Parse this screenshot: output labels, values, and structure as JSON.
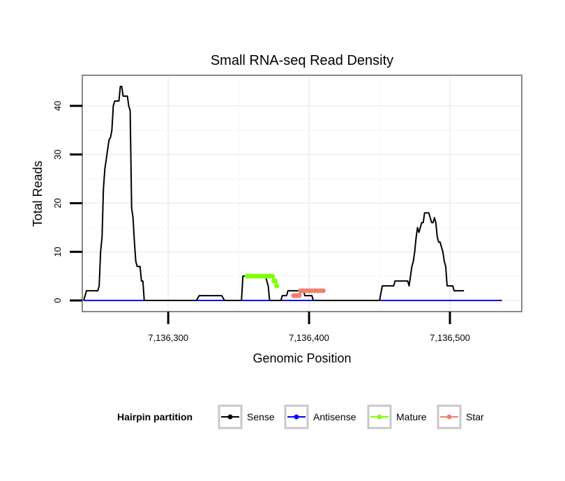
{
  "chart_data": {
    "type": "line",
    "title": "Small RNA-seq Read Density",
    "xlabel": "Genomic Position",
    "ylabel": "Total Reads",
    "xlim": [
      7136240,
      7136550
    ],
    "ylim": [
      -2,
      46
    ],
    "xticks": [
      7136300,
      7136400,
      7136500
    ],
    "xtick_labels": [
      "7,136,300",
      "7,136,400",
      "7,136,500"
    ],
    "yticks": [
      0,
      10,
      20,
      30,
      40
    ],
    "ytick_labels": [
      "0",
      "10",
      "20",
      "30",
      "40"
    ],
    "grid": true,
    "legend": {
      "title": "Hairpin partition",
      "position": "bottom",
      "entries": [
        "Sense",
        "Antisense",
        "Mature",
        "Star"
      ]
    },
    "series": [
      {
        "name": "Sense",
        "color": "#000000",
        "points": [
          [
            7136240,
            0
          ],
          [
            7136242,
            2
          ],
          [
            7136250,
            2
          ],
          [
            7136251,
            3
          ],
          [
            7136252,
            10
          ],
          [
            7136253,
            13
          ],
          [
            7136254,
            23
          ],
          [
            7136255,
            27
          ],
          [
            7136256,
            29
          ],
          [
            7136257,
            31
          ],
          [
            7136258,
            33
          ],
          [
            7136259,
            33.5
          ],
          [
            7136260,
            35
          ],
          [
            7136261,
            40
          ],
          [
            7136262,
            41
          ],
          [
            7136264,
            41
          ],
          [
            7136265,
            41
          ],
          [
            7136266,
            44
          ],
          [
            7136267,
            44
          ],
          [
            7136268,
            42
          ],
          [
            7136269,
            42
          ],
          [
            7136270,
            42
          ],
          [
            7136271,
            42
          ],
          [
            7136272,
            40
          ],
          [
            7136273,
            39
          ],
          [
            7136274,
            19
          ],
          [
            7136275,
            17
          ],
          [
            7136276,
            12
          ],
          [
            7136277,
            8
          ],
          [
            7136278,
            7
          ],
          [
            7136280,
            7
          ],
          [
            7136281,
            4
          ],
          [
            7136282,
            4
          ],
          [
            7136283,
            0
          ],
          [
            7136320,
            0
          ],
          [
            7136322,
            1
          ],
          [
            7136338,
            1
          ],
          [
            7136340,
            0
          ],
          [
            7136352,
            0
          ],
          [
            7136353,
            5
          ],
          [
            7136369,
            5
          ],
          [
            7136370,
            4
          ],
          [
            7136371,
            3
          ],
          [
            7136372,
            0
          ],
          [
            7136380,
            0
          ],
          [
            7136381,
            1
          ],
          [
            7136384,
            1
          ],
          [
            7136385,
            2
          ],
          [
            7136396,
            2
          ],
          [
            7136397,
            1
          ],
          [
            7136402,
            1
          ],
          [
            7136403,
            0
          ],
          [
            7136450,
            0
          ],
          [
            7136452,
            3
          ],
          [
            7136460,
            3
          ],
          [
            7136461,
            4
          ],
          [
            7136470,
            4
          ],
          [
            7136471,
            3
          ],
          [
            7136472,
            5
          ],
          [
            7136473,
            7
          ],
          [
            7136474,
            8
          ],
          [
            7136475,
            10
          ],
          [
            7136476,
            13
          ],
          [
            7136477,
            15
          ],
          [
            7136478,
            14
          ],
          [
            7136479,
            15
          ],
          [
            7136480,
            16
          ],
          [
            7136481,
            16
          ],
          [
            7136482,
            18
          ],
          [
            7136485,
            18
          ],
          [
            7136486,
            17
          ],
          [
            7136487,
            16
          ],
          [
            7136488,
            16
          ],
          [
            7136489,
            17
          ],
          [
            7136490,
            16
          ],
          [
            7136491,
            13
          ],
          [
            7136492,
            12
          ],
          [
            7136493,
            12
          ],
          [
            7136494,
            11
          ],
          [
            7136495,
            10
          ],
          [
            7136496,
            8
          ],
          [
            7136497,
            7
          ],
          [
            7136498,
            3
          ],
          [
            7136502,
            3
          ],
          [
            7136503,
            2
          ],
          [
            7136510,
            2
          ]
        ]
      },
      {
        "name": "Antisense",
        "color": "#0000ff",
        "points": [
          [
            7136240,
            0
          ],
          [
            7136537,
            0
          ]
        ]
      },
      {
        "name": "Mature",
        "color": "#7fff00",
        "points": [
          [
            7136356,
            5
          ],
          [
            7136358,
            5
          ],
          [
            7136360,
            5
          ],
          [
            7136362,
            5
          ],
          [
            7136364,
            5
          ],
          [
            7136366,
            5
          ],
          [
            7136368,
            5
          ],
          [
            7136370,
            5
          ],
          [
            7136372,
            5
          ],
          [
            7136374,
            5
          ],
          [
            7136375,
            4
          ],
          [
            7136376,
            4
          ],
          [
            7136377,
            3
          ]
        ]
      },
      {
        "name": "Star",
        "color": "#f08070",
        "points": [
          [
            7136389,
            1
          ],
          [
            7136390,
            1
          ],
          [
            7136391,
            1
          ],
          [
            7136392,
            1
          ],
          [
            7136393,
            1
          ],
          [
            7136394,
            2
          ],
          [
            7136396,
            2
          ],
          [
            7136398,
            2
          ],
          [
            7136400,
            2
          ],
          [
            7136402,
            2
          ],
          [
            7136404,
            2
          ],
          [
            7136406,
            2
          ],
          [
            7136408,
            2
          ],
          [
            7136410,
            2
          ]
        ]
      }
    ]
  }
}
